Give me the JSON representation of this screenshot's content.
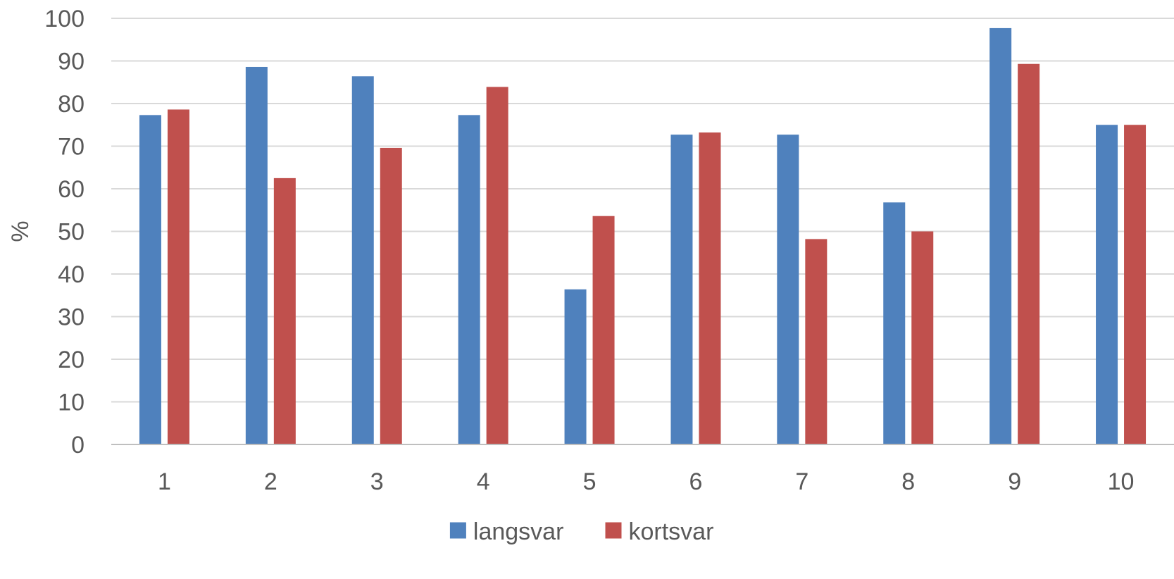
{
  "chart_data": {
    "type": "bar",
    "title": "",
    "xlabel": "",
    "ylabel": "%",
    "ylim": [
      0,
      100
    ],
    "ytick_step": 10,
    "yticks": [
      "0",
      "10",
      "20",
      "30",
      "40",
      "50",
      "60",
      "70",
      "80",
      "90",
      "100"
    ],
    "categories": [
      "1",
      "2",
      "3",
      "4",
      "5",
      "6",
      "7",
      "8",
      "9",
      "10"
    ],
    "series": [
      {
        "name": "langsvar",
        "color": "#4f81bd",
        "values": [
          77.3,
          88.6,
          86.4,
          77.3,
          36.4,
          72.7,
          72.7,
          56.8,
          97.7,
          75.0
        ]
      },
      {
        "name": "kortsvar",
        "color": "#c0504d",
        "values": [
          78.6,
          62.5,
          69.6,
          83.9,
          53.6,
          73.2,
          48.2,
          50.0,
          89.3,
          75.0
        ]
      }
    ],
    "grid": true,
    "legend_position": "bottom-center"
  }
}
